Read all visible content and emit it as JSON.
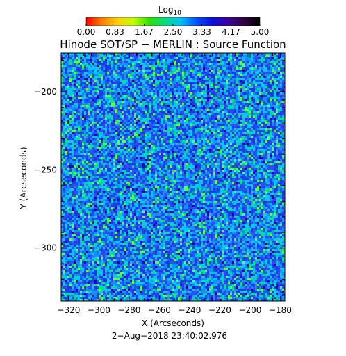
{
  "chart_data": {
    "type": "heatmap",
    "title": "Hinode SOT/SP − MERLIN : Source Function",
    "subtitle": "2−Aug−2018 23:40:02.976",
    "xlabel": "X (Arcseconds)",
    "ylabel": "Y (Arcseconds)",
    "xlim": [
      -325,
      -177
    ],
    "ylim": [
      -334,
      -175
    ],
    "x_ticks": [
      -320,
      -300,
      -280,
      -260,
      -240,
      -220,
      -200,
      -180
    ],
    "x_tick_labels": [
      "−320",
      "−300",
      "−280",
      "−260",
      "−240",
      "−220",
      "−200",
      "−180"
    ],
    "y_ticks": [
      -200,
      -250,
      -300
    ],
    "y_tick_labels": [
      "−200",
      "−250",
      "−300"
    ],
    "colorbar": {
      "title": "Log",
      "title_subscript": "10",
      "range": [
        0,
        5
      ],
      "tick_values": [
        0,
        0.83,
        1.67,
        2.5,
        3.33,
        4.17,
        5
      ],
      "tick_labels": [
        "0.00",
        "0.83",
        "1.67",
        "2.50",
        "3.33",
        "4.17",
        "5.00"
      ],
      "colormap": [
        "#ff0000",
        "#ff8000",
        "#ffd000",
        "#c0ff00",
        "#30e000",
        "#00e080",
        "#00c0ff",
        "#0050ff",
        "#1010e0",
        "#4000a0",
        "#300040",
        "#000000"
      ]
    },
    "field": {
      "description_value_range": [
        3.2,
        4.3
      ],
      "base_color": "#1e38ea",
      "dominant_value": 3.9
    }
  }
}
